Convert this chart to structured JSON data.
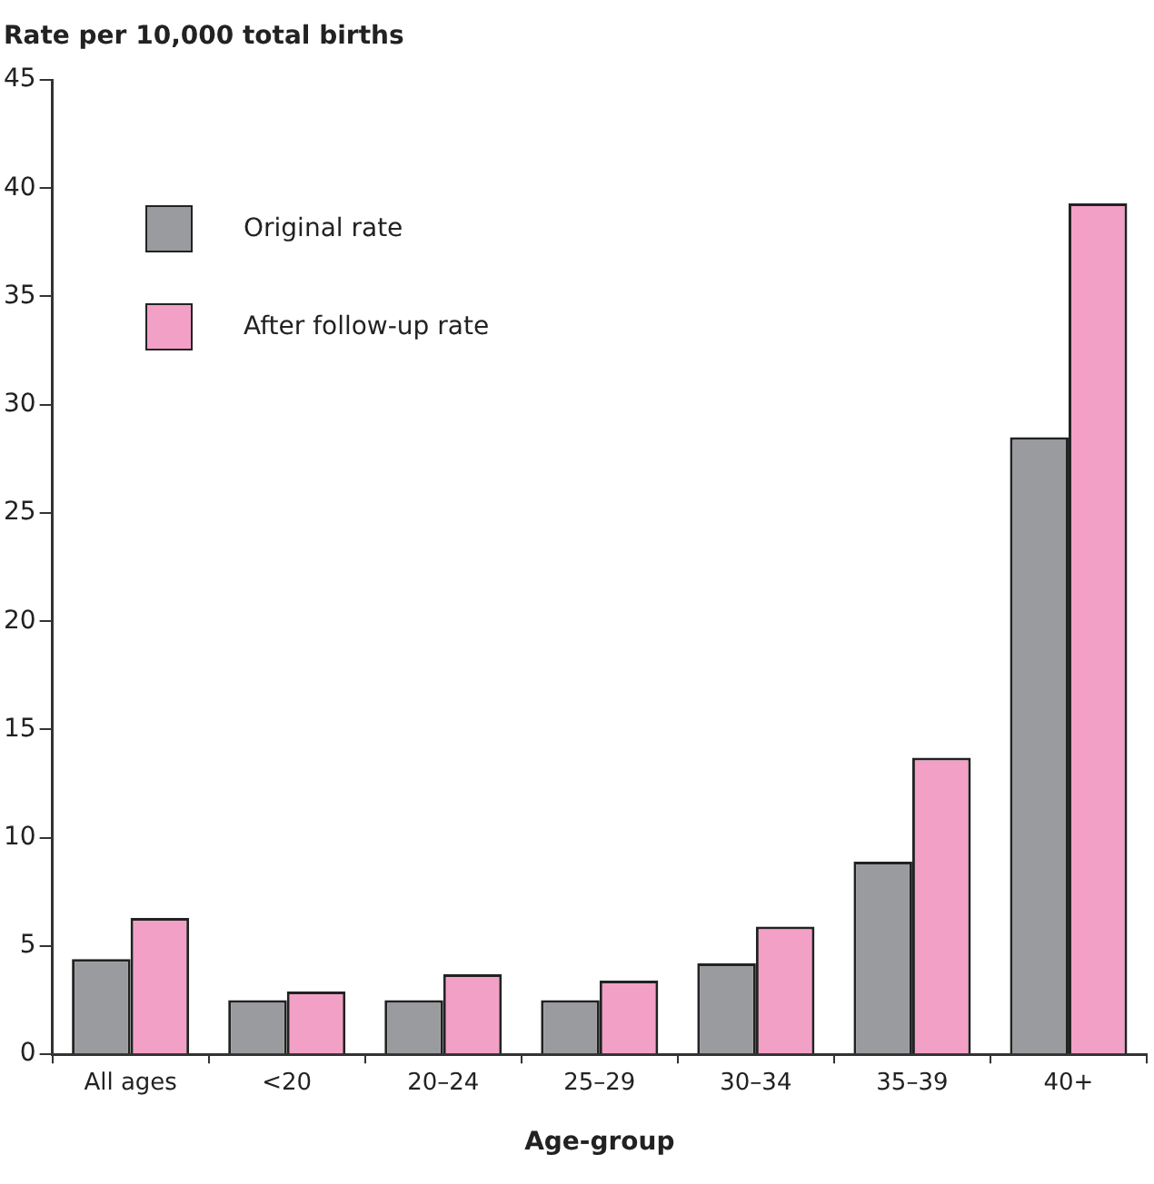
{
  "chart_data": {
    "type": "bar",
    "ylabel": "Rate per 10,000 total births",
    "xlabel": "Age-group",
    "categories": [
      "All ages",
      "<20",
      "20–24",
      "25–29",
      "30–34",
      "35–39",
      "40+"
    ],
    "series": [
      {
        "name": "Original rate",
        "color": "#9a9b9f",
        "values": [
          4.4,
          2.5,
          2.5,
          2.5,
          4.2,
          8.9,
          28.5
        ]
      },
      {
        "name": "After follow-up rate",
        "color": "#f3a0c6",
        "values": [
          6.3,
          2.9,
          3.7,
          3.4,
          5.9,
          13.7,
          39.3
        ]
      }
    ],
    "ylim": [
      0,
      45
    ],
    "yticks": [
      0,
      5,
      10,
      15,
      20,
      25,
      30,
      35,
      40,
      45
    ],
    "grid": false,
    "legend": "top left"
  }
}
